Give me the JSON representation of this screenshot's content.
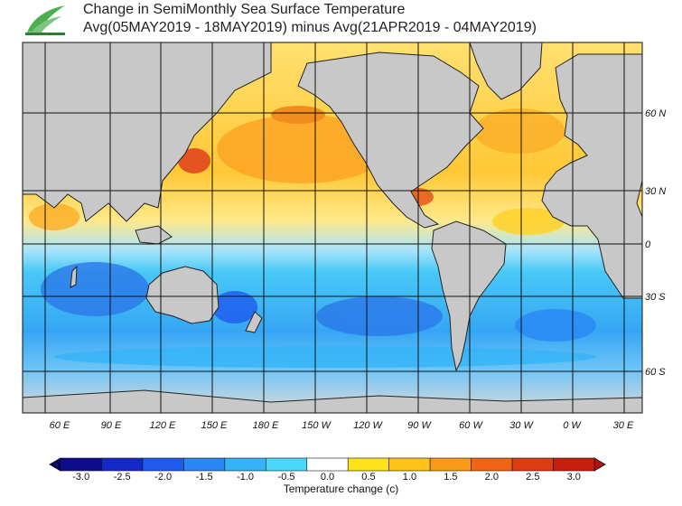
{
  "header": {
    "title_line1": "Change in SemiMonthly Sea Surface Temperature",
    "title_line2": "Avg(05MAY2019 - 18MAY2019) minus Avg(21APR2019 - 04MAY2019)"
  },
  "map": {
    "lon_labels": [
      "60 E",
      "90 E",
      "120 E",
      "150 E",
      "180 E",
      "150 W",
      "120 W",
      "90 W",
      "60 W",
      "30 W",
      "0 W",
      "30 E"
    ],
    "lat_labels": [
      "60 N",
      "30 N",
      "0",
      "30 S",
      "60 S"
    ]
  },
  "colorbar": {
    "title": "Temperature change  (c)",
    "ticks": [
      "-3.0",
      "-2.5",
      "-2.0",
      "-1.5",
      "-1.0",
      "-0.5",
      "0.0",
      "0.5",
      "1.0",
      "1.5",
      "2.0",
      "2.5",
      "3.0"
    ],
    "colors": [
      "#0d0d8c",
      "#1428c8",
      "#1e5af0",
      "#2888f5",
      "#34b4f8",
      "#48d8fa",
      "#ffffff",
      "#ffe31a",
      "#ffc219",
      "#fb9a14",
      "#f06414",
      "#dc3c10",
      "#c81e0e"
    ]
  }
}
